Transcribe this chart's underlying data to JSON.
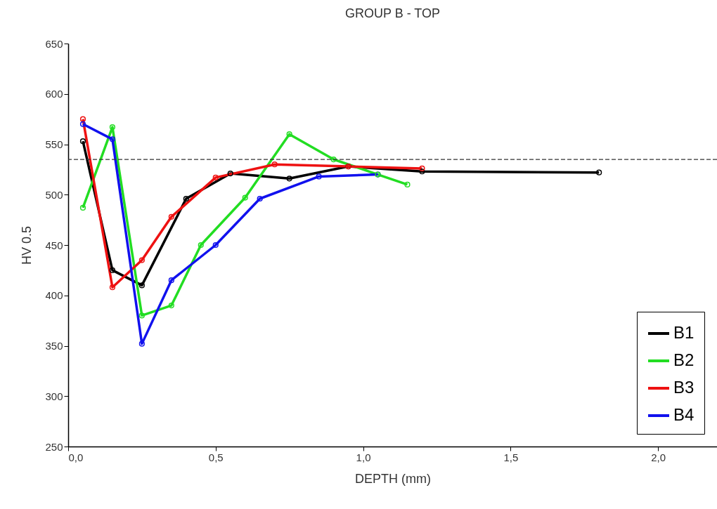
{
  "chart_data": {
    "type": "line",
    "title": "GROUP B - TOP",
    "xlabel": "DEPTH (mm)",
    "ylabel": "HV 0.5",
    "xlim": [
      0,
      2.2
    ],
    "xticks": [
      {
        "value": 0,
        "label": "0,0"
      },
      {
        "value": 0.5,
        "label": "0,5"
      },
      {
        "value": 1,
        "label": "1,0"
      },
      {
        "value": 1.5,
        "label": "1,5"
      },
      {
        "value": 2,
        "label": "2,0"
      }
    ],
    "ylim": [
      250,
      650
    ],
    "yticks": [
      250,
      300,
      350,
      400,
      450,
      500,
      550,
      600,
      650
    ],
    "grid": false,
    "legend": "bottom right",
    "marker": "circle",
    "line_style": "solid",
    "ref_lines": [
      {
        "axis": "y",
        "value": 535,
        "color": "#333333",
        "line_style": "dashed"
      }
    ],
    "series": [
      {
        "name": "B1",
        "color": "#000000",
        "x": [
          0.05,
          0.15,
          0.25,
          0.4,
          0.55,
          0.75,
          0.95,
          1.2,
          1.8
        ],
        "values": [
          553,
          425,
          410,
          496,
          521,
          516,
          528,
          523,
          522
        ]
      },
      {
        "name": "B2",
        "color": "#22dd22",
        "x": [
          0.05,
          0.15,
          0.25,
          0.35,
          0.45,
          0.6,
          0.75,
          0.9,
          1.05,
          1.15
        ],
        "values": [
          487,
          567,
          380,
          390,
          450,
          497,
          560,
          535,
          520,
          510
        ]
      },
      {
        "name": "B3",
        "color": "#ee1111",
        "x": [
          0.05,
          0.15,
          0.25,
          0.35,
          0.5,
          0.7,
          0.95,
          1.2
        ],
        "values": [
          575,
          408,
          435,
          478,
          517,
          530,
          528,
          526
        ]
      },
      {
        "name": "B4",
        "color": "#1111ee",
        "x": [
          0.05,
          0.15,
          0.25,
          0.35,
          0.5,
          0.65,
          0.85,
          1.05
        ],
        "values": [
          570,
          555,
          352,
          415,
          450,
          496,
          518,
          520
        ]
      }
    ]
  }
}
